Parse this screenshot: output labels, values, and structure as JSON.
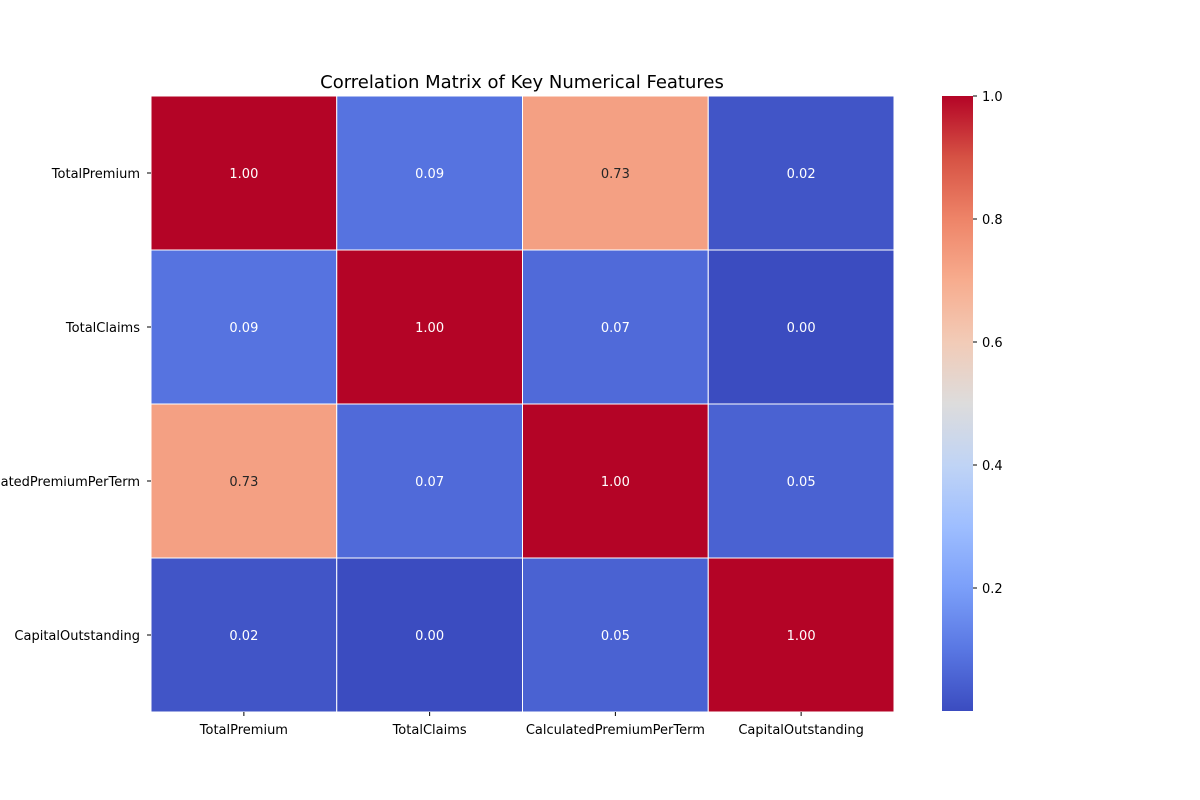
{
  "chart_data": {
    "type": "heatmap",
    "title": "Correlation Matrix of Key Numerical Features",
    "xlabel": "",
    "ylabel": "",
    "row_labels": [
      "TotalPremium",
      "TotalClaims",
      "CalculatedPremiumPerTerm",
      "CapitalOutstanding"
    ],
    "col_labels": [
      "TotalPremium",
      "TotalClaims",
      "CalculatedPremiumPerTerm",
      "CapitalOutstanding"
    ],
    "values": [
      [
        1.0,
        0.09,
        0.73,
        0.02
      ],
      [
        0.09,
        1.0,
        0.07,
        0.0
      ],
      [
        0.73,
        0.07,
        1.0,
        0.05
      ],
      [
        0.02,
        0.0,
        0.05,
        1.0
      ]
    ],
    "annotation_format": "0.00",
    "colormap": "coolwarm",
    "colorbar": {
      "range": [
        0.0,
        1.0
      ],
      "ticks": [
        0.2,
        0.4,
        0.6,
        0.8,
        1.0
      ],
      "tick_labels": [
        "0.2",
        "0.4",
        "0.6",
        "0.8",
        "1.0"
      ]
    },
    "colormap_stops": [
      {
        "v": 0.0,
        "color": "#3b4cc0"
      },
      {
        "v": 0.1,
        "color": "#5977e3"
      },
      {
        "v": 0.2,
        "color": "#7b9ff9"
      },
      {
        "v": 0.3,
        "color": "#9ebeff"
      },
      {
        "v": 0.4,
        "color": "#c0d4f5"
      },
      {
        "v": 0.5,
        "color": "#dddcdc"
      },
      {
        "v": 0.6,
        "color": "#f2cbb7"
      },
      {
        "v": 0.7,
        "color": "#f7ac8e"
      },
      {
        "v": 0.8,
        "color": "#ee8468"
      },
      {
        "v": 0.9,
        "color": "#d65244"
      },
      {
        "v": 1.0,
        "color": "#b40426"
      }
    ],
    "grid": false,
    "legend": "colorbar-right"
  }
}
